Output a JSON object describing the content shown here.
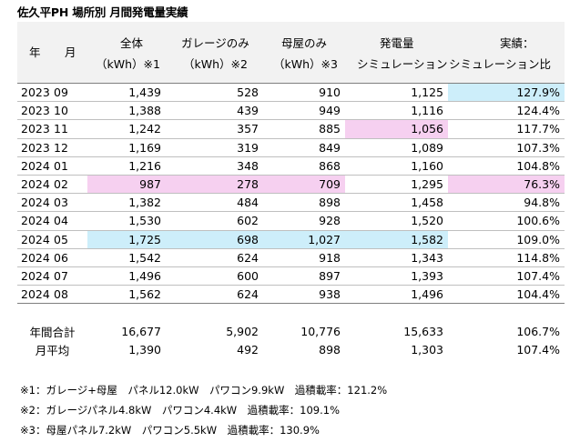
{
  "title": "佐久平PH 場所別 月間発電量実績",
  "header": {
    "year": "年",
    "month": "月",
    "total_1": "全体",
    "total_2": "（kWh）※1",
    "garage_1": "ガレージのみ",
    "garage_2": "（kWh）※2",
    "house_1": "母屋のみ",
    "house_2": "（kWh）※3",
    "sim_1": "発電量",
    "sim_2": "シミュレーション",
    "ratio_1": "実績：",
    "ratio_2": "シミュレーション比"
  },
  "rows": [
    {
      "year": "2023",
      "month": "09",
      "total": "1,439",
      "garage": "528",
      "house": "910",
      "sim": "1,125",
      "ratio": "127.9%"
    },
    {
      "year": "2023",
      "month": "10",
      "total": "1,388",
      "garage": "439",
      "house": "949",
      "sim": "1,116",
      "ratio": "124.4%"
    },
    {
      "year": "2023",
      "month": "11",
      "total": "1,242",
      "garage": "357",
      "house": "885",
      "sim": "1,056",
      "ratio": "117.7%"
    },
    {
      "year": "2023",
      "month": "12",
      "total": "1,169",
      "garage": "319",
      "house": "849",
      "sim": "1,089",
      "ratio": "107.3%"
    },
    {
      "year": "2024",
      "month": "01",
      "total": "1,216",
      "garage": "348",
      "house": "868",
      "sim": "1,160",
      "ratio": "104.8%"
    },
    {
      "year": "2024",
      "month": "02",
      "total": "987",
      "garage": "278",
      "house": "709",
      "sim": "1,295",
      "ratio": "76.3%"
    },
    {
      "year": "2024",
      "month": "03",
      "total": "1,382",
      "garage": "484",
      "house": "898",
      "sim": "1,458",
      "ratio": "94.8%"
    },
    {
      "year": "2024",
      "month": "04",
      "total": "1,530",
      "garage": "602",
      "house": "928",
      "sim": "1,520",
      "ratio": "100.6%"
    },
    {
      "year": "2024",
      "month": "05",
      "total": "1,725",
      "garage": "698",
      "house": "1,027",
      "sim": "1,582",
      "ratio": "109.0%"
    },
    {
      "year": "2024",
      "month": "06",
      "total": "1,542",
      "garage": "624",
      "house": "918",
      "sim": "1,343",
      "ratio": "114.8%"
    },
    {
      "year": "2024",
      "month": "07",
      "total": "1,496",
      "garage": "600",
      "house": "897",
      "sim": "1,393",
      "ratio": "107.4%"
    },
    {
      "year": "2024",
      "month": "08",
      "total": "1,562",
      "garage": "624",
      "house": "938",
      "sim": "1,496",
      "ratio": "104.4%"
    }
  ],
  "summary": [
    {
      "label": "年間合計",
      "total": "16,677",
      "garage": "5,902",
      "house": "10,776",
      "sim": "15,633",
      "ratio": "106.7%"
    },
    {
      "label": "月平均",
      "total": "1,390",
      "garage": "492",
      "house": "898",
      "sim": "1,303",
      "ratio": "107.4%"
    }
  ],
  "notes": [
    "※1：ガレージ+母屋　パネル12.0kW　パワコン9.9kW　過積載率：121.2%",
    "※2：ガレージパネル4.8kW　パワコン4.4kW　過積載率：109.1%",
    "※3：母屋パネル7.2kW　パワコン5.5kW　過積載率：130.9%"
  ],
  "colors": {
    "highlight_blue": "#cdeefa",
    "highlight_pink": "#f6d0f0",
    "header_bg": "#f2f2f2"
  }
}
